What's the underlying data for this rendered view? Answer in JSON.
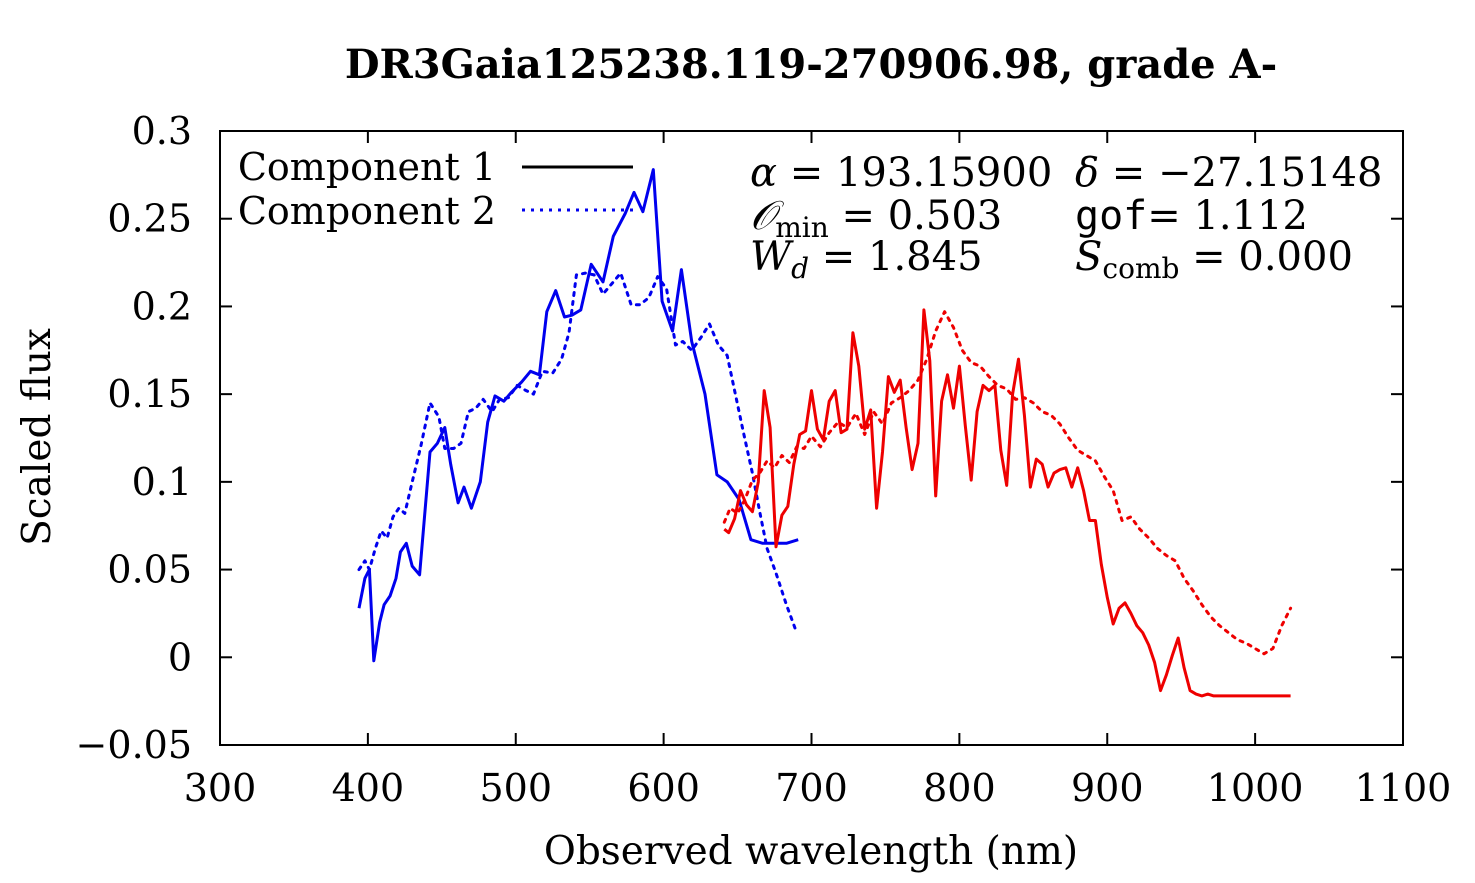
{
  "chart_data": {
    "type": "line",
    "title": "DR3Gaia125238.119-270906.98, grade A-",
    "xlabel": "Observed wavelength (nm)",
    "ylabel": "Scaled flux",
    "xlim": [
      300,
      1100
    ],
    "ylim": [
      -0.05,
      0.3
    ],
    "xticks": [
      "300",
      "400",
      "500",
      "600",
      "700",
      "800",
      "900",
      "1000",
      "1100"
    ],
    "yticks": [
      "−0.05",
      "0",
      "0.05",
      "0.1",
      "0.15",
      "0.2",
      "0.25",
      "0.3"
    ],
    "grid": false,
    "legend_position": "top-left",
    "legend": [
      {
        "label": "Component 1",
        "style": "solid"
      },
      {
        "label": "Component 2",
        "style": "dotted"
      }
    ],
    "annotations": {
      "alpha": {
        "symbol": "α",
        "value": "193.15900"
      },
      "delta": {
        "symbol": "δ",
        "value": "−27.15148"
      },
      "omin": {
        "symbol": "𝒪",
        "sub": "min",
        "value": "0.503"
      },
      "gof": {
        "symbol": "gof",
        "value": "1.112"
      },
      "wd": {
        "symbol": "W",
        "sub": "d",
        "value": "1.845"
      },
      "scomb": {
        "symbol": "S",
        "sub": "comb",
        "value": "0.000"
      }
    },
    "series": [
      {
        "component": 1,
        "color": "#0000ee",
        "style": "solid",
        "x": [
          394,
          398,
          401,
          404,
          408,
          411,
          415,
          419,
          422,
          426,
          430,
          435,
          442,
          447,
          452,
          456,
          461,
          465,
          470,
          476,
          481,
          486,
          492,
          497,
          504,
          510,
          516,
          521,
          527,
          533,
          538,
          544,
          551,
          559,
          566,
          574,
          580,
          586,
          593,
          599,
          606,
          612,
          619,
          628,
          636,
          643,
          651,
          659,
          667,
          675,
          683,
          691
        ],
        "y": [
          0.028,
          0.045,
          0.05,
          -0.002,
          0.02,
          0.03,
          0.035,
          0.045,
          0.06,
          0.065,
          0.052,
          0.047,
          0.117,
          0.122,
          0.131,
          0.11,
          0.088,
          0.097,
          0.085,
          0.1,
          0.134,
          0.149,
          0.146,
          0.151,
          0.157,
          0.163,
          0.161,
          0.197,
          0.209,
          0.194,
          0.195,
          0.198,
          0.224,
          0.214,
          0.24,
          0.253,
          0.265,
          0.254,
          0.278,
          0.203,
          0.186,
          0.221,
          0.18,
          0.15,
          0.104,
          0.1,
          0.09,
          0.067,
          0.065,
          0.065,
          0.065,
          0.067
        ]
      },
      {
        "component": 2,
        "color": "#0000ee",
        "style": "dotted",
        "x": [
          394,
          398,
          401,
          405,
          409,
          413,
          417,
          421,
          425,
          430,
          436,
          442,
          448,
          452,
          458,
          463,
          468,
          473,
          478,
          484,
          489,
          495,
          501,
          507,
          512,
          518,
          525,
          531,
          536,
          541,
          547,
          553,
          559,
          565,
          571,
          578,
          584,
          590,
          596,
          602,
          608,
          613,
          619,
          625,
          631,
          637,
          643,
          648,
          654,
          660,
          665,
          670,
          676,
          683,
          690
        ],
        "y": [
          0.05,
          0.055,
          0.05,
          0.062,
          0.072,
          0.068,
          0.08,
          0.085,
          0.082,
          0.1,
          0.121,
          0.145,
          0.137,
          0.119,
          0.119,
          0.122,
          0.14,
          0.142,
          0.147,
          0.14,
          0.147,
          0.148,
          0.155,
          0.152,
          0.15,
          0.163,
          0.162,
          0.17,
          0.185,
          0.218,
          0.219,
          0.218,
          0.207,
          0.213,
          0.219,
          0.201,
          0.201,
          0.205,
          0.217,
          0.21,
          0.178,
          0.18,
          0.175,
          0.182,
          0.19,
          0.178,
          0.172,
          0.152,
          0.128,
          0.105,
          0.083,
          0.062,
          0.048,
          0.03,
          0.014
        ]
      },
      {
        "component": 1,
        "color": "#ee0000",
        "style": "solid",
        "x": [
          641,
          644,
          648,
          652,
          656,
          660,
          664,
          668,
          672,
          676,
          680,
          684,
          688,
          692,
          696,
          700,
          704,
          708,
          712,
          716,
          720,
          724,
          728,
          732,
          736,
          740,
          744,
          748,
          752,
          756,
          760,
          764,
          768,
          772,
          776,
          780,
          784,
          788,
          792,
          796,
          800,
          804,
          808,
          812,
          816,
          820,
          824,
          828,
          832,
          836,
          840,
          844,
          848,
          852,
          856,
          860,
          864,
          868,
          872,
          876,
          880,
          884,
          888,
          892,
          896,
          900,
          904,
          908,
          912,
          916,
          920,
          924,
          928,
          932,
          936,
          940,
          944,
          948,
          952,
          956,
          960,
          964,
          968,
          972,
          976,
          980,
          984,
          988,
          992,
          996,
          1000,
          1004,
          1008,
          1012,
          1016,
          1020,
          1024
        ],
        "y": [
          0.073,
          0.071,
          0.079,
          0.095,
          0.087,
          0.083,
          0.1,
          0.152,
          0.131,
          0.063,
          0.081,
          0.086,
          0.11,
          0.127,
          0.129,
          0.152,
          0.13,
          0.124,
          0.146,
          0.152,
          0.128,
          0.13,
          0.185,
          0.166,
          0.13,
          0.141,
          0.085,
          0.117,
          0.16,
          0.151,
          0.158,
          0.131,
          0.107,
          0.122,
          0.198,
          0.169,
          0.092,
          0.146,
          0.161,
          0.142,
          0.166,
          0.132,
          0.101,
          0.14,
          0.155,
          0.152,
          0.155,
          0.118,
          0.098,
          0.15,
          0.17,
          0.138,
          0.097,
          0.113,
          0.11,
          0.097,
          0.105,
          0.107,
          0.108,
          0.097,
          0.108,
          0.095,
          0.078,
          0.078,
          0.053,
          0.034,
          0.019,
          0.028,
          0.031,
          0.025,
          0.018,
          0.014,
          0.007,
          -0.003,
          -0.019,
          -0.01,
          0.001,
          0.011,
          -0.006,
          -0.019,
          -0.021,
          -0.022,
          -0.021,
          -0.022,
          -0.022,
          -0.022,
          -0.022,
          -0.022,
          -0.022,
          -0.022,
          -0.022,
          -0.022,
          -0.022,
          -0.022,
          -0.022,
          -0.022,
          -0.022
        ]
      },
      {
        "component": 2,
        "color": "#ee0000",
        "style": "dotted",
        "x": [
          641,
          645,
          650,
          655,
          660,
          665,
          670,
          675,
          680,
          685,
          690,
          695,
          700,
          706,
          712,
          718,
          724,
          730,
          736,
          742,
          748,
          754,
          760,
          766,
          772,
          778,
          784,
          790,
          796,
          802,
          808,
          814,
          820,
          826,
          832,
          838,
          844,
          850,
          856,
          862,
          868,
          874,
          880,
          886,
          892,
          898,
          904,
          910,
          916,
          922,
          928,
          934,
          940,
          946,
          952,
          958,
          964,
          970,
          976,
          982,
          988,
          994,
          1000,
          1006,
          1012,
          1018,
          1024
        ],
        "y": [
          0.077,
          0.085,
          0.082,
          0.09,
          0.101,
          0.105,
          0.112,
          0.108,
          0.115,
          0.111,
          0.12,
          0.119,
          0.126,
          0.12,
          0.128,
          0.134,
          0.131,
          0.139,
          0.127,
          0.14,
          0.133,
          0.145,
          0.148,
          0.152,
          0.158,
          0.17,
          0.186,
          0.197,
          0.188,
          0.175,
          0.168,
          0.166,
          0.16,
          0.155,
          0.153,
          0.147,
          0.148,
          0.145,
          0.14,
          0.138,
          0.133,
          0.125,
          0.118,
          0.115,
          0.112,
          0.103,
          0.095,
          0.078,
          0.08,
          0.073,
          0.068,
          0.062,
          0.058,
          0.055,
          0.045,
          0.038,
          0.03,
          0.023,
          0.018,
          0.014,
          0.01,
          0.008,
          0.005,
          0.002,
          0.005,
          0.018,
          0.028
        ]
      }
    ]
  }
}
